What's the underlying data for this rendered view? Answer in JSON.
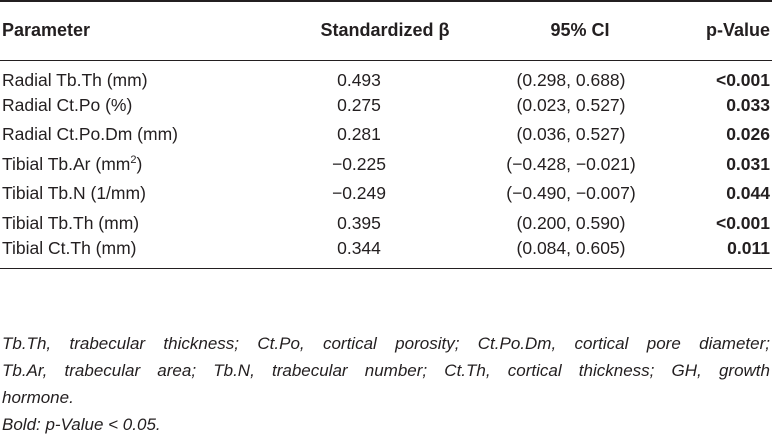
{
  "table": {
    "headers": {
      "parameter": "Parameter",
      "beta": "Standardized β",
      "ci": "95% CI",
      "p": "p-Value"
    },
    "rows": [
      {
        "parameter": "Radial Tb.Th (mm)",
        "parameter_sup": "",
        "parameter_tail": "",
        "beta": "0.493",
        "ci": "(0.298, 0.688)",
        "p": "<0.001"
      },
      {
        "parameter": "Radial Ct.Po (%)",
        "parameter_sup": "",
        "parameter_tail": "",
        "beta": "0.275",
        "ci": "(0.023, 0.527)",
        "p": "0.033"
      },
      {
        "parameter": "Radial Ct.Po.Dm (mm)",
        "parameter_sup": "",
        "parameter_tail": "",
        "beta": "0.281",
        "ci": "(0.036, 0.527)",
        "p": "0.026"
      },
      {
        "parameter": "Tibial Tb.Ar (mm",
        "parameter_sup": "2",
        "parameter_tail": ")",
        "beta": "−0.225",
        "ci": "(−0.428, −0.021)",
        "p": "0.031"
      },
      {
        "parameter": "Tibial Tb.N (1/mm)",
        "parameter_sup": "",
        "parameter_tail": "",
        "beta": "−0.249",
        "ci": "(−0.490, −0.007)",
        "p": "0.044"
      },
      {
        "parameter": "Tibial Tb.Th (mm)",
        "parameter_sup": "",
        "parameter_tail": "",
        "beta": "0.395",
        "ci": "(0.200, 0.590)",
        "p": "<0.001"
      },
      {
        "parameter": "Tibial Ct.Th (mm)",
        "parameter_sup": "",
        "parameter_tail": "",
        "beta": "0.344",
        "ci": "(0.084, 0.605)",
        "p": "0.011"
      }
    ]
  },
  "footnote": {
    "line1": "Tb.Th, trabecular thickness; Ct.Po, cortical porosity; Ct.Po.Dm, cortical pore diameter;",
    "line2": "Tb.Ar, trabecular area; Tb.N, trabecular number; Ct.Th, cortical thickness; GH, growth",
    "line3": "hormone.",
    "bold_note": "Bold: p-Value < 0.05."
  }
}
